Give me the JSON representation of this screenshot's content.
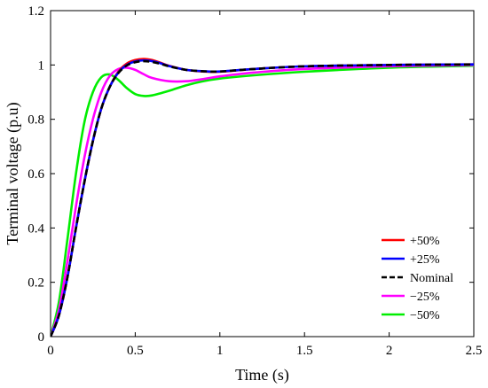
{
  "chart_data": {
    "type": "line",
    "title": "",
    "xlabel": "Time (s)",
    "ylabel": "Terminal voltage (p.u)",
    "xlim": [
      0,
      2.5
    ],
    "ylim": [
      0,
      1.2
    ],
    "xticks": [
      "0",
      "0.5",
      "1",
      "1.5",
      "2",
      "2.5"
    ],
    "yticks": [
      "0",
      "0.2",
      "0.4",
      "0.6",
      "0.8",
      "1",
      "1.2"
    ],
    "grid": false,
    "legend_position": "bottom-right",
    "series": [
      {
        "name": "+50%",
        "color": "#ff0000",
        "dash": "solid",
        "x": [
          0,
          0.05,
          0.1,
          0.15,
          0.2,
          0.25,
          0.3,
          0.35,
          0.4,
          0.45,
          0.5,
          0.55,
          0.6,
          0.65,
          0.7,
          0.8,
          0.9,
          1.0,
          1.2,
          1.5,
          2.0,
          2.5
        ],
        "y": [
          0,
          0.08,
          0.22,
          0.4,
          0.57,
          0.72,
          0.84,
          0.92,
          0.975,
          1.005,
          1.018,
          1.022,
          1.018,
          1.008,
          0.997,
          0.982,
          0.976,
          0.975,
          0.985,
          0.995,
          1.0,
          1.002
        ]
      },
      {
        "name": "+25%",
        "color": "#0000ff",
        "dash": "solid",
        "x": [
          0,
          0.05,
          0.1,
          0.15,
          0.2,
          0.25,
          0.3,
          0.35,
          0.4,
          0.45,
          0.5,
          0.55,
          0.6,
          0.65,
          0.7,
          0.8,
          0.9,
          1.0,
          1.2,
          1.5,
          2.0,
          2.5
        ],
        "y": [
          0,
          0.08,
          0.22,
          0.4,
          0.57,
          0.72,
          0.84,
          0.92,
          0.972,
          1.0,
          1.013,
          1.017,
          1.014,
          1.006,
          0.996,
          0.982,
          0.977,
          0.976,
          0.985,
          0.995,
          1.0,
          1.002
        ]
      },
      {
        "name": "Nominal",
        "color": "#000000",
        "dash": "dashed",
        "x": [
          0,
          0.05,
          0.1,
          0.15,
          0.2,
          0.25,
          0.3,
          0.35,
          0.4,
          0.45,
          0.5,
          0.55,
          0.6,
          0.65,
          0.7,
          0.8,
          0.9,
          1.0,
          1.2,
          1.5,
          2.0,
          2.5
        ],
        "y": [
          0,
          0.08,
          0.22,
          0.4,
          0.57,
          0.72,
          0.84,
          0.92,
          0.97,
          0.998,
          1.01,
          1.014,
          1.011,
          1.004,
          0.995,
          0.982,
          0.977,
          0.976,
          0.985,
          0.995,
          1.0,
          1.002
        ]
      },
      {
        "name": "−25%",
        "color": "#ff00ff",
        "dash": "solid",
        "x": [
          0,
          0.05,
          0.1,
          0.15,
          0.2,
          0.25,
          0.3,
          0.35,
          0.4,
          0.45,
          0.5,
          0.55,
          0.6,
          0.7,
          0.8,
          0.9,
          1.0,
          1.2,
          1.5,
          2.0,
          2.5
        ],
        "y": [
          0,
          0.1,
          0.28,
          0.48,
          0.66,
          0.8,
          0.9,
          0.96,
          0.985,
          0.99,
          0.982,
          0.966,
          0.952,
          0.94,
          0.94,
          0.948,
          0.958,
          0.972,
          0.985,
          0.995,
          1.0
        ]
      },
      {
        "name": "−50%",
        "color": "#00ee00",
        "dash": "solid",
        "x": [
          0,
          0.05,
          0.1,
          0.15,
          0.2,
          0.25,
          0.3,
          0.35,
          0.4,
          0.45,
          0.5,
          0.55,
          0.6,
          0.7,
          0.8,
          0.9,
          1.0,
          1.2,
          1.5,
          2.0,
          2.5
        ],
        "y": [
          0,
          0.13,
          0.36,
          0.6,
          0.79,
          0.9,
          0.955,
          0.965,
          0.945,
          0.915,
          0.893,
          0.886,
          0.888,
          0.905,
          0.925,
          0.94,
          0.95,
          0.962,
          0.975,
          0.99,
          0.997
        ]
      }
    ]
  }
}
